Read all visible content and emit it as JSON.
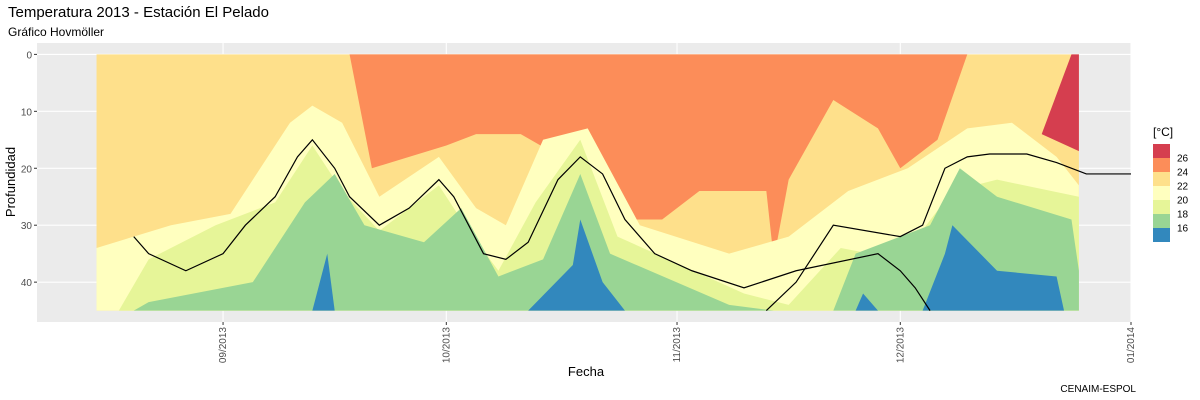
{
  "chart_data": {
    "type": "heatmap",
    "subtype": "filled-contour (Hovmöller)",
    "title": "Temperatura 2013 - Estación El Pelado",
    "subtitle": "Gráfico Hovmöller",
    "xlabel": "Fecha",
    "ylabel": "Profundidad",
    "caption": "CENAIM-ESPOL",
    "x_ticks": [
      "09/2013",
      "10/2013",
      "11/2013",
      "12/2013",
      "01/2014"
    ],
    "y_ticks": [
      0,
      10,
      20,
      30,
      40
    ],
    "y_reversed": true,
    "ylim": [
      -2,
      47
    ],
    "xlim": [
      "2013-08-07",
      "2014-01-01"
    ],
    "legend": {
      "title": "[°C]",
      "position": "right",
      "items": [
        {
          "label": "26",
          "color": "#d53e4f"
        },
        {
          "label": "24",
          "color": "#fc8d59"
        },
        {
          "label": "22",
          "color": "#fee08b"
        },
        {
          "label": "20",
          "color": "#ffffbf"
        },
        {
          "label": "18",
          "color": "#e6f598"
        },
        {
          "label": "16",
          "color": "#99d594"
        },
        {
          "label": "",
          "color": "#3288bd"
        }
      ]
    },
    "data_extent": {
      "depth": [
        0,
        45
      ],
      "dates": [
        "2013-08-15",
        "2013-12-25"
      ]
    },
    "contour_line": {
      "name": "",
      "points": [
        [
          "2013-08-20",
          32
        ],
        [
          "2013-08-22",
          35
        ],
        [
          "2013-08-27",
          38
        ],
        [
          "2013-09-01",
          35
        ],
        [
          "2013-09-04",
          30
        ],
        [
          "2013-09-08",
          25
        ],
        [
          "2013-09-11",
          18
        ],
        [
          "2013-09-13",
          15
        ],
        [
          "2013-09-16",
          20
        ],
        [
          "2013-09-18",
          25
        ],
        [
          "2013-09-22",
          30
        ],
        [
          "2013-09-26",
          27
        ],
        [
          "2013-09-30",
          22
        ],
        [
          "2013-10-02",
          25
        ],
        [
          "2013-10-04",
          30
        ],
        [
          "2013-10-06",
          35
        ],
        [
          "2013-10-09",
          36
        ],
        [
          "2013-10-12",
          33
        ],
        [
          "2013-10-16",
          22
        ],
        [
          "2013-10-19",
          18
        ],
        [
          "2013-10-22",
          21
        ],
        [
          "2013-10-25",
          29
        ],
        [
          "2013-10-29",
          35
        ],
        [
          "2013-11-03",
          38
        ],
        [
          "2013-11-10",
          41
        ],
        [
          "2013-11-17",
          38
        ],
        [
          "2013-11-28",
          35
        ],
        [
          "2013-12-01",
          38
        ],
        [
          "2013-12-03",
          41
        ],
        [
          "2013-12-05",
          45
        ]
      ],
      "points_2": [
        [
          "2013-11-13",
          45
        ],
        [
          "2013-11-17",
          40
        ],
        [
          "2013-11-22",
          30
        ],
        [
          "2013-12-01",
          32
        ],
        [
          "2013-12-04",
          30
        ],
        [
          "2013-12-07",
          20
        ],
        [
          "2013-12-10",
          18
        ],
        [
          "2013-12-13",
          17.5
        ],
        [
          "2013-12-18",
          17.5
        ],
        [
          "2013-12-22",
          19
        ],
        [
          "2013-12-26",
          21
        ],
        [
          "2014-01-01",
          21
        ]
      ]
    }
  }
}
